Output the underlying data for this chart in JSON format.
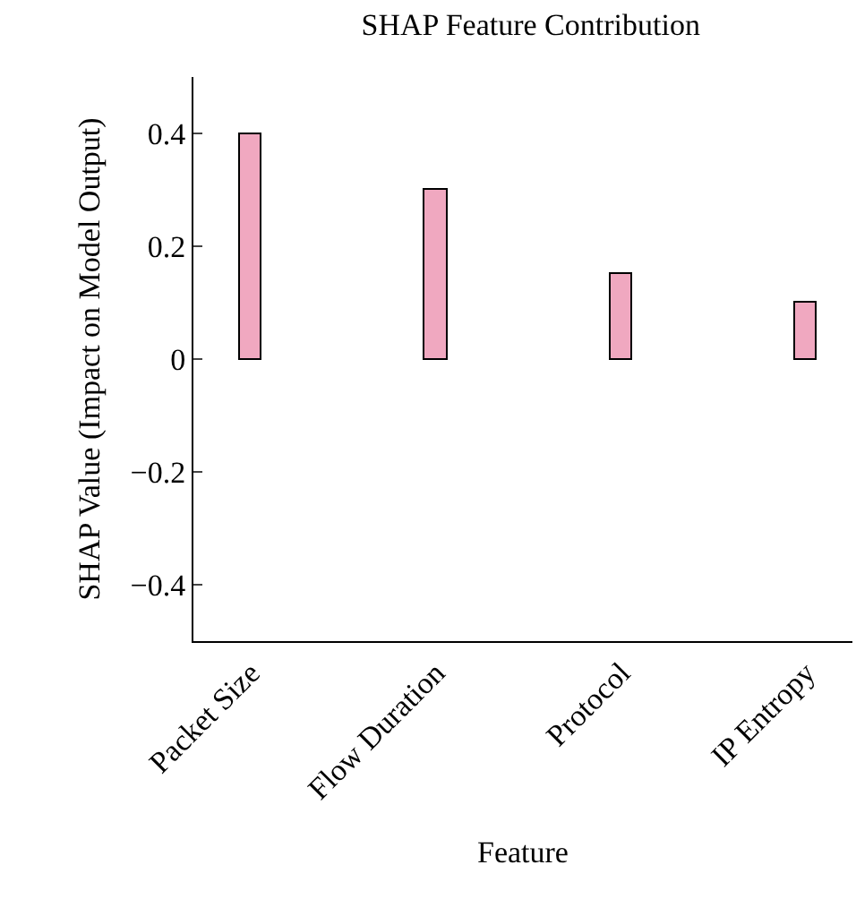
{
  "chart_data": {
    "type": "bar",
    "title": "SHAP Feature Contribution",
    "xlabel": "Feature",
    "ylabel": "SHAP Value (Impact on Model Output)",
    "categories": [
      "Packet Size",
      "Flow Duration",
      "Protocol",
      "IP Entropy"
    ],
    "values": [
      0.4,
      0.3,
      0.15,
      0.1
    ],
    "color": "#f0a8c0",
    "ylim": [
      -0.5,
      0.5
    ],
    "yticks": [
      {
        "value": -0.4,
        "label": "−0.4"
      },
      {
        "value": -0.2,
        "label": "−0.2"
      },
      0,
      0.2,
      0.4
    ],
    "grid": false
  }
}
